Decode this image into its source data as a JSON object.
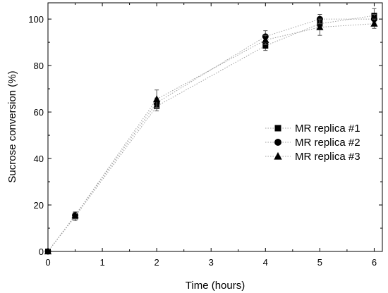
{
  "chart_data": {
    "type": "scatter",
    "title": "",
    "xlabel": "Time (hours)",
    "ylabel": "Sucrose conversion (%)",
    "xlim": [
      0,
      6.15
    ],
    "ylim": [
      0,
      107
    ],
    "xticks": [
      0,
      1,
      2,
      3,
      4,
      5,
      6
    ],
    "yticks": [
      0,
      20,
      40,
      60,
      80,
      100
    ],
    "grid": false,
    "legend_position": "center-right",
    "line_style": "dotted",
    "line_color": "#a0a0a0",
    "series": [
      {
        "name": "MR replica #1",
        "marker": "square",
        "x": [
          0,
          0.5,
          2,
          4,
          5,
          6
        ],
        "y": [
          0,
          15,
          62.5,
          88.5,
          98,
          101.5
        ],
        "error": [
          0,
          1.8,
          2,
          2,
          2,
          3
        ]
      },
      {
        "name": "MR replica #2",
        "marker": "circle",
        "x": [
          0,
          0.5,
          2,
          4,
          5,
          6
        ],
        "y": [
          0,
          15.5,
          64,
          92.5,
          100,
          100
        ],
        "error": [
          0,
          1.5,
          2,
          2.5,
          2,
          2
        ]
      },
      {
        "name": "MR replica #3",
        "marker": "triangle",
        "x": [
          0,
          0.5,
          2,
          4,
          5,
          6
        ],
        "y": [
          0,
          15.5,
          65.5,
          91,
          96.5,
          98
        ],
        "error": [
          0,
          1.5,
          4,
          2,
          3.5,
          2
        ]
      }
    ]
  }
}
